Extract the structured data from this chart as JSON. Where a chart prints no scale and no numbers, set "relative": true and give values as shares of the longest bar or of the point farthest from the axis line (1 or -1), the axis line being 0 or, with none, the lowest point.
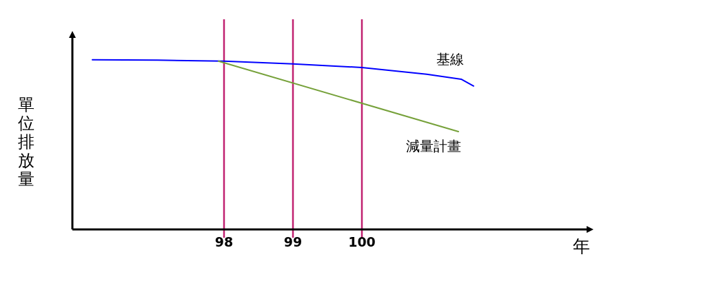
{
  "chart_data": {
    "type": "line",
    "relative": true,
    "xlabel": "年",
    "ylabel": "單位排放量",
    "xlim": [
      95.8,
      103.3
    ],
    "xticks": [
      98,
      99,
      100
    ],
    "series": [
      {
        "name": "基線",
        "color": "#0000ff",
        "x": [
          96.09,
          97.04,
          98,
          99,
          100,
          100.94,
          101.44,
          101.62
        ],
        "values": [
          1.0,
          0.998,
          0.992,
          0.976,
          0.955,
          0.915,
          0.886,
          0.846
        ]
      },
      {
        "name": "減量計畫",
        "color": "#76a13a",
        "x": [
          97.92,
          101.4
        ],
        "values": [
          0.992,
          0.577
        ]
      }
    ],
    "ref_lines": [
      {
        "axis": "x",
        "value": 98,
        "color": "#c0206f"
      },
      {
        "axis": "x",
        "value": 99,
        "color": "#c0206f"
      },
      {
        "axis": "x",
        "value": 100,
        "color": "#c0206f"
      }
    ]
  }
}
